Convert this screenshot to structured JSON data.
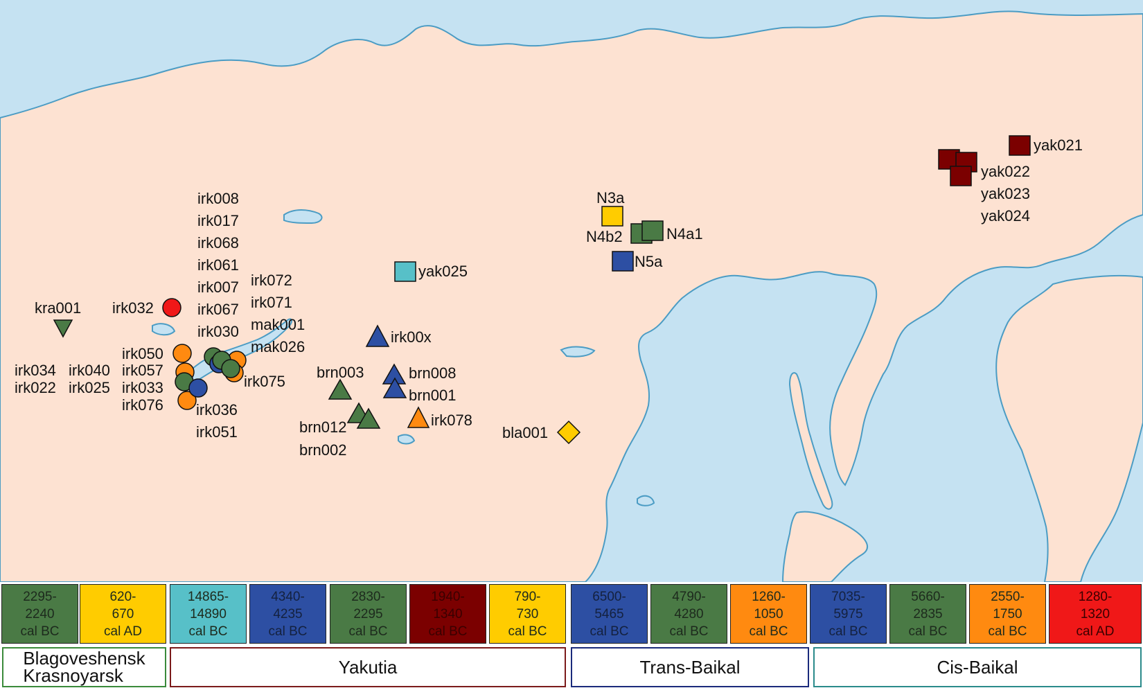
{
  "colors": {
    "sea": "#c5e2f2",
    "land": "#fde2d2",
    "coast": "#4b9cc4",
    "green": "#4a7a45",
    "yellow": "#ffcc00",
    "cyan": "#57c0c8",
    "blue": "#2d4fa3",
    "darkred": "#7b0000",
    "orange": "#ff8a10",
    "red": "#f01818"
  },
  "markers": [
    {
      "id": "kra001",
      "shape": "triangle-down",
      "color": "green"
    },
    {
      "id": "irk032",
      "shape": "circle",
      "color": "red"
    },
    {
      "id": "yak025",
      "shape": "square",
      "color": "cyan"
    },
    {
      "id": "irk00x",
      "shape": "triangle",
      "color": "blue"
    },
    {
      "id": "brn003",
      "shape": "triangle",
      "color": "green"
    },
    {
      "id": "brn008",
      "shape": "triangle",
      "color": "blue"
    },
    {
      "id": "irk078",
      "shape": "triangle",
      "color": "orange"
    },
    {
      "id": "bla001",
      "shape": "diamond",
      "color": "yellow"
    },
    {
      "id": "N3a",
      "shape": "square",
      "color": "yellow"
    },
    {
      "id": "N4a1",
      "shape": "square",
      "color": "green"
    },
    {
      "id": "N5a",
      "shape": "square",
      "color": "blue"
    },
    {
      "id": "yak021",
      "shape": "square",
      "color": "darkred"
    }
  ],
  "labels": {
    "kra001": "kra001",
    "irk032": "irk032",
    "irk_col1": [
      "irk008",
      "irk017",
      "irk068",
      "irk061",
      "irk007",
      "irk067",
      "irk030"
    ],
    "irk_col2": [
      "irk072",
      "irk071",
      "mak001",
      "mak026"
    ],
    "irk050": "irk050",
    "irk057": "irk057",
    "irk033": "irk033",
    "irk076": "irk076",
    "irk034": "irk034",
    "irk040": "irk040",
    "irk022": "irk022",
    "irk025": "irk025",
    "irk075": "irk075",
    "irk036": "irk036",
    "irk051": "irk051",
    "yak025": "yak025",
    "irk00x": "irk00x",
    "brn003": "brn003",
    "brn008": "brn008",
    "brn001": "brn001",
    "brn012": "brn012",
    "brn002": "brn002",
    "irk078": "irk078",
    "bla001": "bla001",
    "N3a": "N3a",
    "N4b2": "N4b2",
    "N4a1": "N4a1",
    "N5a": "N5a",
    "yak021": "yak021",
    "yak022": "yak022",
    "yak023": "yak023",
    "yak024": "yak024"
  },
  "legend": [
    {
      "l1": "2295-",
      "l2": "2240",
      "l3": "cal BC",
      "color": "#4a7a45"
    },
    {
      "l1": "620-",
      "l2": "670",
      "l3": "cal AD",
      "color": "#ffcc00"
    },
    {
      "l1": "14865-",
      "l2": "14890",
      "l3": "cal BC",
      "color": "#57c0c8"
    },
    {
      "l1": "4340-",
      "l2": "4235",
      "l3": "cal BC",
      "color": "#2d4fa3"
    },
    {
      "l1": "2830-",
      "l2": "2295",
      "l3": "cal BC",
      "color": "#4a7a45"
    },
    {
      "l1": "1940-",
      "l2": "1340",
      "l3": "cal BC",
      "color": "#7b0000"
    },
    {
      "l1": "790-",
      "l2": "730",
      "l3": "cal BC",
      "color": "#ffcc00"
    },
    {
      "l1": "6500-",
      "l2": "5465",
      "l3": "cal BC",
      "color": "#2d4fa3"
    },
    {
      "l1": "4790-",
      "l2": "4280",
      "l3": "cal BC",
      "color": "#4a7a45"
    },
    {
      "l1": "1260-",
      "l2": "1050",
      "l3": "cal BC",
      "color": "#ff8a10"
    },
    {
      "l1": "7035-",
      "l2": "5975",
      "l3": "cal BC",
      "color": "#2d4fa3"
    },
    {
      "l1": "5660-",
      "l2": "2835",
      "l3": "cal BC",
      "color": "#4a7a45"
    },
    {
      "l1": "2550-",
      "l2": "1750",
      "l3": "cal BC",
      "color": "#ff8a10"
    },
    {
      "l1": "1280-",
      "l2": "1320",
      "l3": "cal AD",
      "color": "#f01818"
    }
  ],
  "regions": [
    {
      "name": "Blagoveshensk",
      "name2": "Krasnoyarsk",
      "border": "#3a8a3a"
    },
    {
      "name": "Yakutia",
      "border": "#7b1a1a"
    },
    {
      "name": "Trans-Baikal",
      "border": "#1a2a7b"
    },
    {
      "name": "Cis-Baikal",
      "border": "#2a8a8a"
    }
  ]
}
